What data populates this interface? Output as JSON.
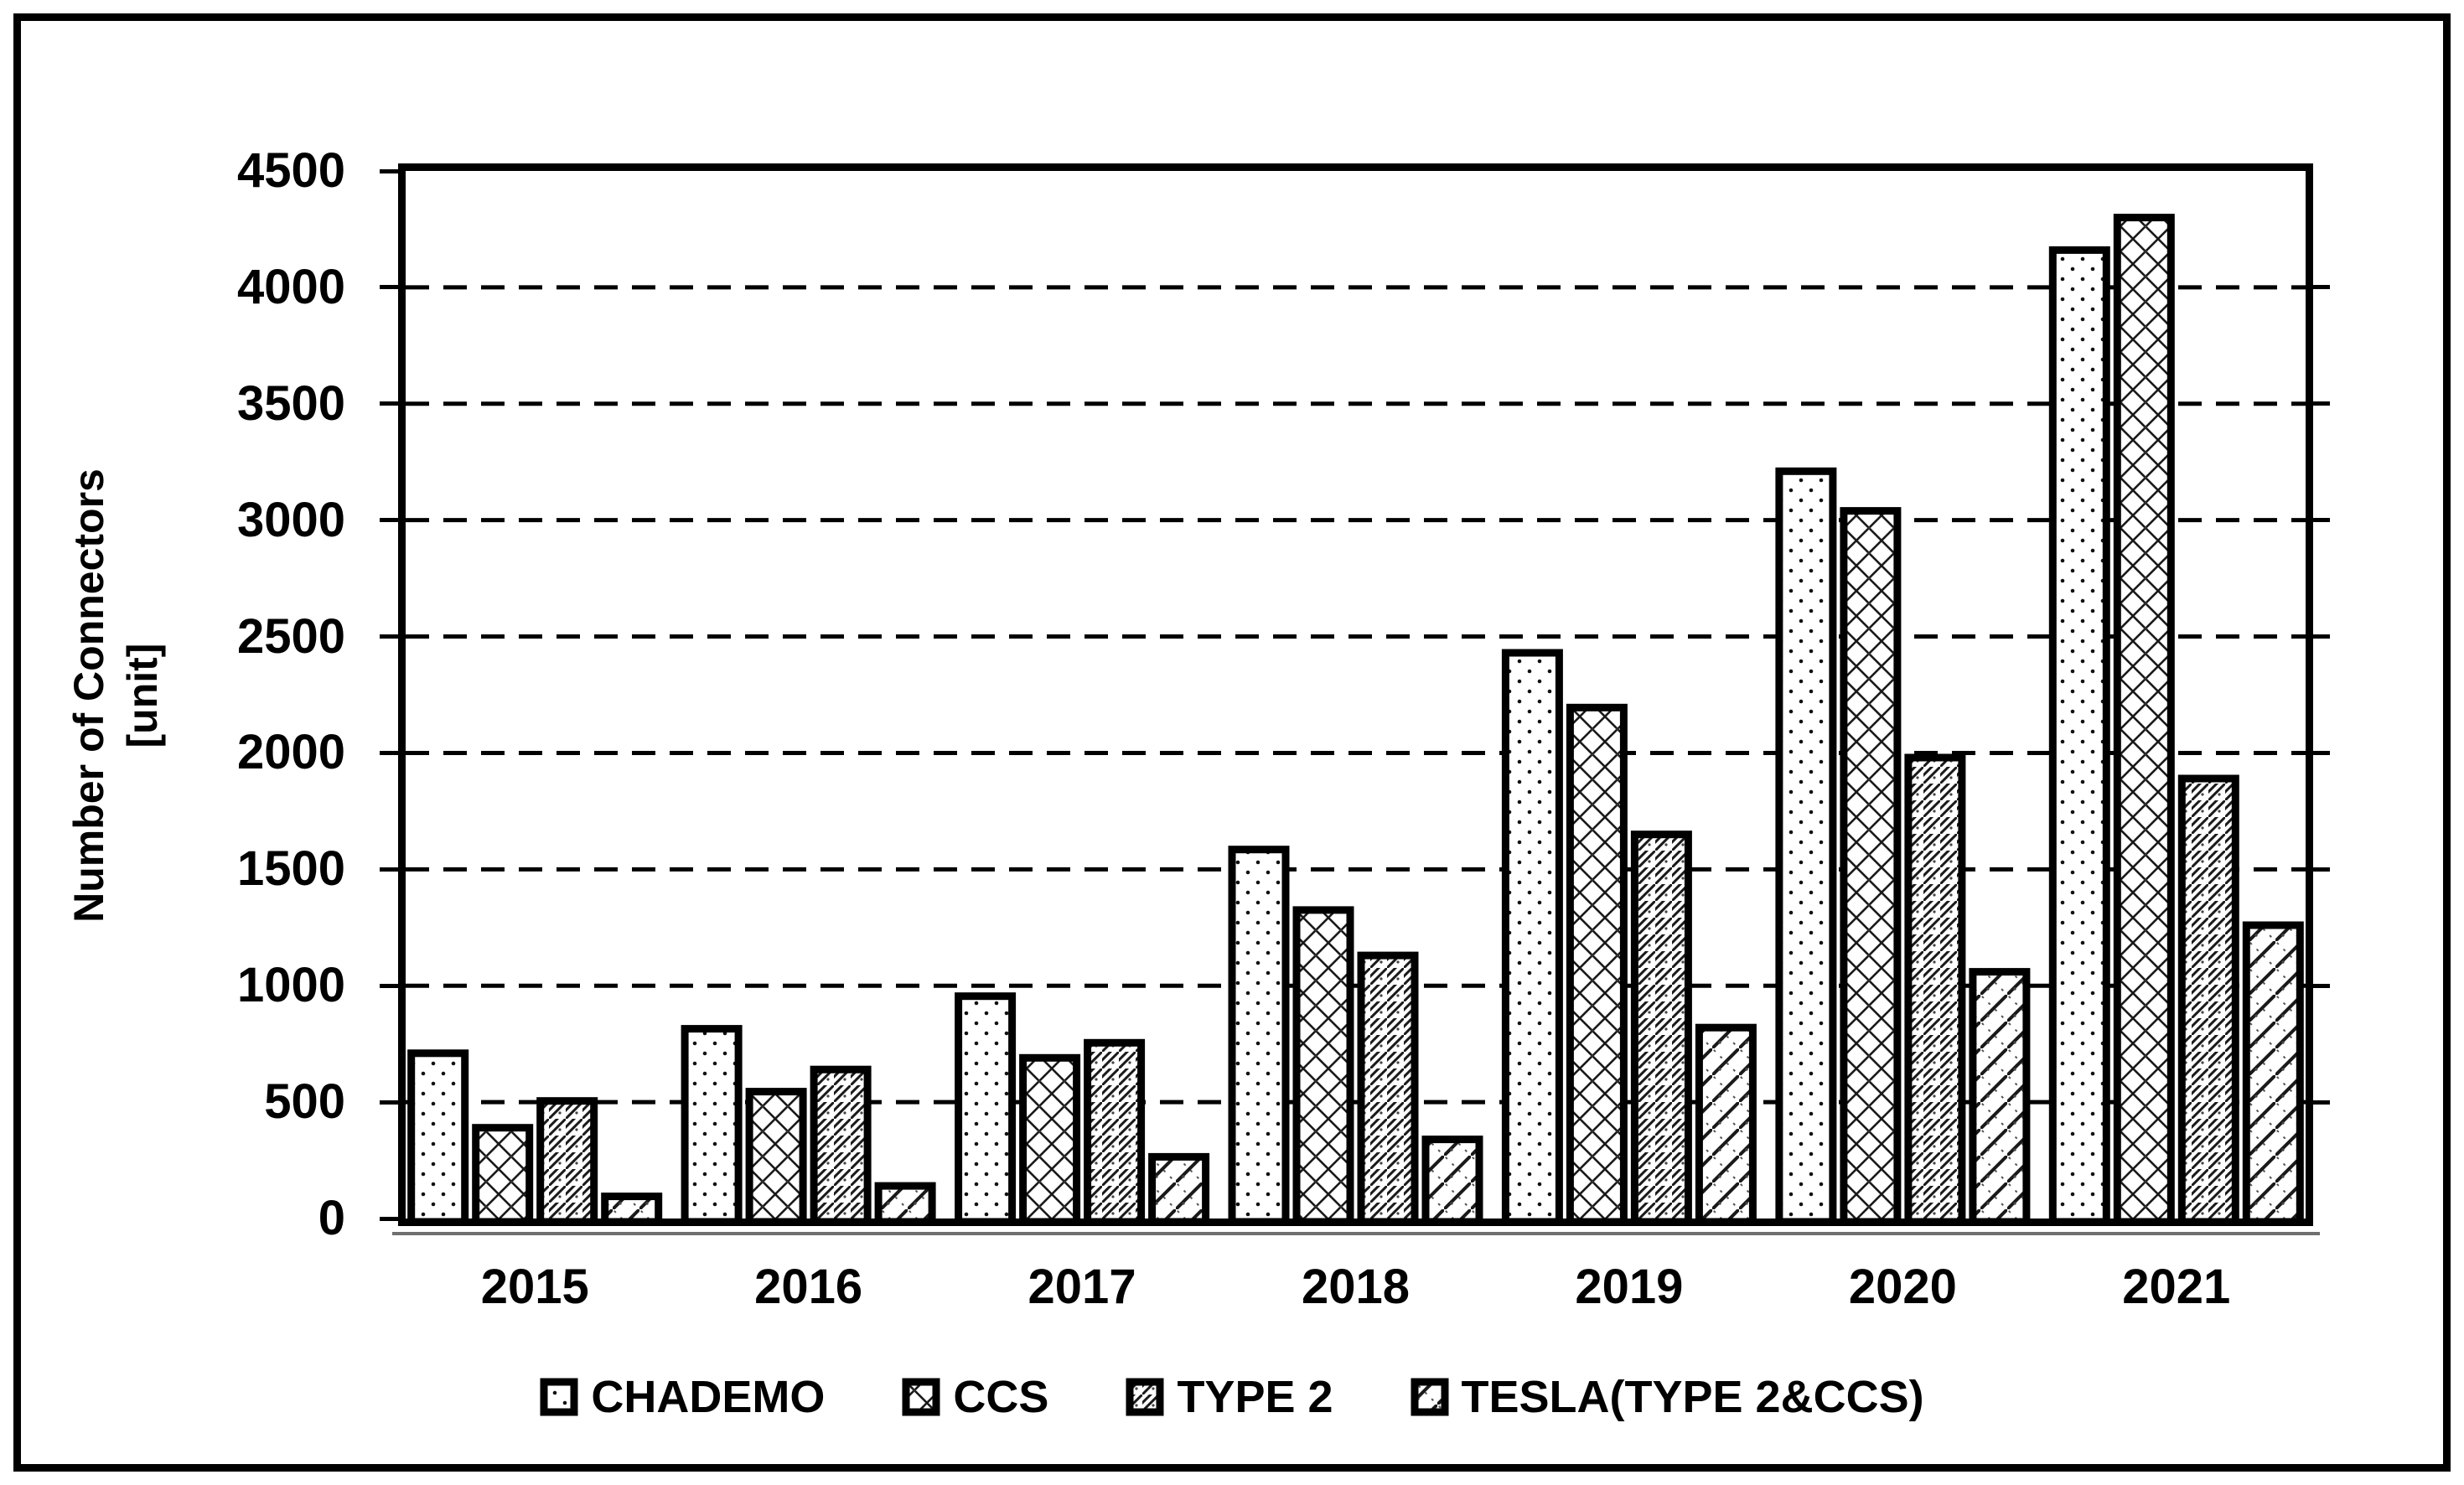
{
  "figure": {
    "background": "#ffffff",
    "border_color": "#000000",
    "ink_color": "#000000"
  },
  "chart_data": {
    "type": "bar",
    "title": "",
    "xlabel": "",
    "ylabel_line1": "Number of Connectors",
    "ylabel_line2": "[unit]",
    "categories": [
      "2015",
      "2016",
      "2017",
      "2018",
      "2019",
      "2020",
      "2021"
    ],
    "series": [
      {
        "name": "CHADEMO",
        "pattern": "dots",
        "values": [
          710,
          815,
          955,
          1585,
          2430,
          3210,
          4160
        ]
      },
      {
        "name": "CCS",
        "pattern": "diamond-crosshatch",
        "values": [
          390,
          545,
          690,
          1325,
          2195,
          3040,
          4300
        ]
      },
      {
        "name": "TYPE 2",
        "pattern": "diagonal-hatch",
        "values": [
          505,
          640,
          755,
          1130,
          1650,
          1980,
          1890
        ]
      },
      {
        "name": "TESLA(TYPE 2&CCS)",
        "pattern": "wide-diagonal-hatch",
        "values": [
          95,
          140,
          265,
          340,
          820,
          1060,
          1260
        ]
      }
    ],
    "ylim": [
      0,
      4500
    ],
    "ytick_step": 500,
    "yticks": [
      "0",
      "500",
      "1000",
      "1500",
      "2000",
      "2500",
      "3000",
      "3500",
      "4000",
      "4500"
    ],
    "grid": "horizontal-dashed",
    "legend_position": "bottom"
  }
}
